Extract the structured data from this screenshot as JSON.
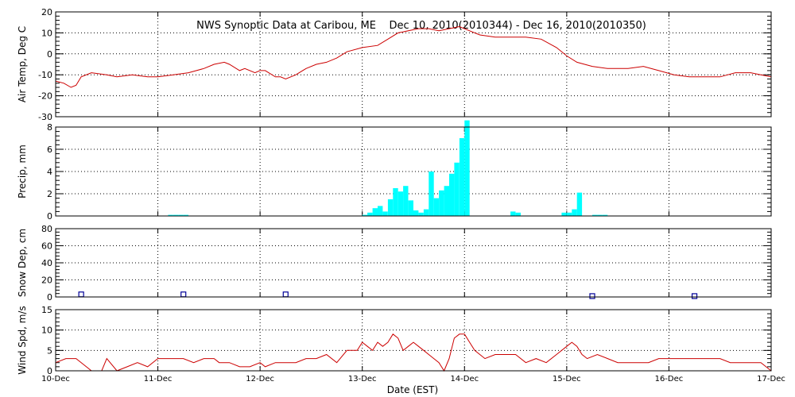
{
  "chart_data": {
    "type": "line",
    "title": "NWS Synoptic Data at Caribou, ME    Dec 10, 2010(2010344) - Dec 16, 2010(2010350)",
    "xlabel": "Date (EST)",
    "xlim": [
      "2010-12-10",
      "2010-12-17"
    ],
    "x_ticks": [
      "10-Dec",
      "11-Dec",
      "12-Dec",
      "13-Dec",
      "14-Dec",
      "15-Dec",
      "16-Dec",
      "17-Dec"
    ],
    "grid": "dotted vertical at day boundaries, dotted horizontal at y ticks",
    "colors": {
      "temp": "#cc0000",
      "precip": "#00ffff",
      "snow": "#000099",
      "wind": "#cc0000"
    },
    "panels": [
      {
        "id": "temp",
        "type": "line",
        "ylabel": "Air Temp, Deg C",
        "ylim": [
          -30,
          20
        ],
        "yticks": [
          -30,
          -20,
          -10,
          0,
          10,
          20
        ],
        "x_days": [
          0,
          0.08,
          0.15,
          0.2,
          0.25,
          0.35,
          0.5,
          0.6,
          0.75,
          0.9,
          1.0,
          1.15,
          1.3,
          1.45,
          1.55,
          1.65,
          1.7,
          1.8,
          1.85,
          1.95,
          2.0,
          2.05,
          2.15,
          2.2,
          2.25,
          2.35,
          2.45,
          2.55,
          2.65,
          2.75,
          2.85,
          3.0,
          3.15,
          3.25,
          3.35,
          3.45,
          3.55,
          3.65,
          3.75,
          3.85,
          3.95,
          4.05,
          4.15,
          4.3,
          4.5,
          4.6,
          4.75,
          4.9,
          5.0,
          5.1,
          5.25,
          5.4,
          5.6,
          5.75,
          5.9,
          6.05,
          6.2,
          6.35,
          6.5,
          6.65,
          6.8,
          6.9,
          7.0
        ],
        "y": [
          -13,
          -14,
          -16,
          -15,
          -11,
          -9,
          -10,
          -11,
          -10,
          -11,
          -11,
          -10,
          -9,
          -7,
          -5,
          -4,
          -5,
          -8,
          -7,
          -9,
          -8,
          -8,
          -11,
          -11,
          -12,
          -10,
          -7,
          -5,
          -4,
          -2,
          1,
          3,
          4,
          7,
          10,
          11,
          12,
          12,
          11,
          12,
          13,
          11,
          9,
          8,
          8,
          8,
          7,
          3,
          -1,
          -4,
          -6,
          -7,
          -7,
          -6,
          -8,
          -10,
          -11,
          -11,
          -11,
          -9,
          -9,
          -10,
          -11
        ]
      },
      {
        "id": "precip",
        "type": "bar",
        "ylabel": "Precip, mm",
        "ylim": [
          0,
          8
        ],
        "yticks": [
          0,
          2,
          4,
          6,
          8
        ],
        "x_days": [
          1.1,
          1.15,
          1.2,
          1.25,
          3.0,
          3.05,
          3.1,
          3.15,
          3.2,
          3.25,
          3.3,
          3.35,
          3.4,
          3.45,
          3.5,
          3.55,
          3.6,
          3.65,
          3.7,
          3.75,
          3.8,
          3.85,
          3.9,
          3.95,
          4.0,
          4.45,
          4.5,
          4.95,
          5.0,
          5.05,
          5.1,
          5.25,
          5.3,
          5.35
        ],
        "values": [
          0.1,
          0.1,
          0.1,
          0.1,
          0.1,
          0.3,
          0.7,
          0.9,
          0.4,
          1.5,
          2.5,
          2.2,
          2.7,
          1.4,
          0.5,
          0.3,
          0.6,
          4.0,
          1.6,
          2.3,
          2.7,
          3.8,
          4.8,
          7.0,
          9.0,
          0.4,
          0.3,
          0.3,
          0.3,
          0.6,
          2.1,
          0.1,
          0.1,
          0.1
        ]
      },
      {
        "id": "snow",
        "type": "scatter",
        "ylabel": "Snow Dep, cm",
        "ylim": [
          0,
          80
        ],
        "yticks": [
          0,
          20,
          40,
          60,
          80
        ],
        "x_days": [
          0.25,
          1.25,
          2.25,
          5.25,
          6.25
        ],
        "y": [
          3,
          3,
          3,
          1,
          1
        ]
      },
      {
        "id": "wind",
        "type": "line",
        "ylabel": "Wind Spd, m/s",
        "ylim": [
          0,
          15
        ],
        "yticks": [
          0,
          5,
          10,
          15
        ],
        "x_days": [
          0,
          0.1,
          0.2,
          0.3,
          0.35,
          0.45,
          0.5,
          0.6,
          0.7,
          0.8,
          0.9,
          1.0,
          1.05,
          1.15,
          1.25,
          1.35,
          1.45,
          1.55,
          1.6,
          1.7,
          1.8,
          1.9,
          2.0,
          2.05,
          2.15,
          2.25,
          2.35,
          2.45,
          2.55,
          2.65,
          2.75,
          2.85,
          2.95,
          3.0,
          3.05,
          3.1,
          3.15,
          3.2,
          3.25,
          3.3,
          3.35,
          3.4,
          3.45,
          3.5,
          3.55,
          3.6,
          3.65,
          3.7,
          3.75,
          3.8,
          3.85,
          3.9,
          3.95,
          4.0,
          4.05,
          4.1,
          4.15,
          4.2,
          4.3,
          4.4,
          4.5,
          4.6,
          4.7,
          4.8,
          4.9,
          5.0,
          5.05,
          5.1,
          5.15,
          5.2,
          5.3,
          5.4,
          5.5,
          5.6,
          5.7,
          5.8,
          5.9,
          6.0,
          6.1,
          6.2,
          6.3,
          6.4,
          6.5,
          6.6,
          6.7,
          6.8,
          6.9,
          7.0
        ],
        "y": [
          2,
          3,
          3,
          1,
          0,
          0,
          3,
          0,
          1,
          2,
          1,
          3,
          3,
          3,
          3,
          2,
          3,
          3,
          2,
          2,
          1,
          1,
          2,
          1,
          2,
          2,
          2,
          3,
          3,
          4,
          2,
          5,
          5,
          7,
          6,
          5,
          7,
          6,
          7,
          9,
          8,
          5,
          6,
          7,
          6,
          5,
          4,
          3,
          2,
          0,
          3,
          8,
          9,
          9,
          7,
          5,
          4,
          3,
          4,
          4,
          4,
          2,
          3,
          2,
          4,
          6,
          7,
          6,
          4,
          3,
          4,
          3,
          2,
          2,
          2,
          2,
          3,
          3,
          3,
          3,
          3,
          3,
          3,
          2,
          2,
          2,
          2,
          0
        ]
      }
    ]
  }
}
